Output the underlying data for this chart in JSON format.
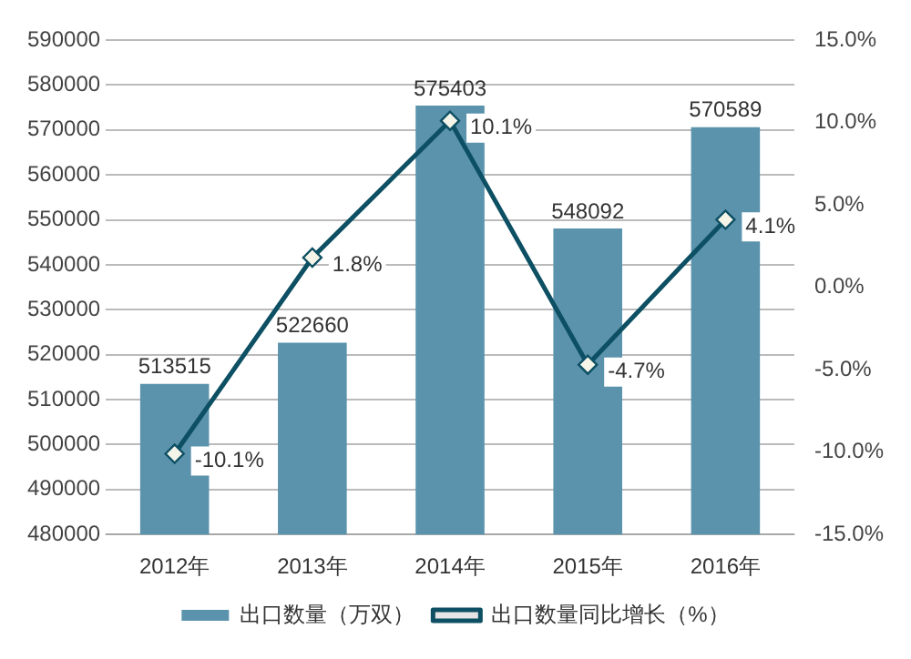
{
  "chart_data": {
    "type": "bar",
    "categories": [
      "2012年",
      "2013年",
      "2014年",
      "2015年",
      "2016年"
    ],
    "series": [
      {
        "name": "出口数量（万双）",
        "color": "#5b93ad",
        "values": [
          513515,
          522660,
          575403,
          548092,
          570589
        ],
        "data_labels": true
      },
      {
        "name": "出口数量同比增长（%）",
        "type": "line",
        "axis": "y2",
        "color": "#0d4f63",
        "values": [
          -10.1,
          1.8,
          10.1,
          -4.7,
          4.1
        ],
        "value_labels": [
          "-10.1%",
          "1.8%",
          "10.1%",
          "-4.7%",
          "4.1%"
        ],
        "marker": "diamond"
      }
    ],
    "ylim": [
      480000,
      590000
    ],
    "yticks": [
      480000,
      490000,
      500000,
      510000,
      520000,
      530000,
      540000,
      550000,
      560000,
      570000,
      580000,
      590000
    ],
    "y2lim": [
      -15,
      15
    ],
    "y2ticks": [
      {
        "value": -15,
        "label": "-15.0%"
      },
      {
        "value": -10,
        "label": "-10.0%"
      },
      {
        "value": -5,
        "label": "-5.0%"
      },
      {
        "value": 0,
        "label": "0.0%"
      },
      {
        "value": 5,
        "label": "5.0%"
      },
      {
        "value": 10,
        "label": "10.0%"
      },
      {
        "value": 15,
        "label": "15.0%"
      }
    ],
    "grid": "y",
    "legend": "bottom"
  }
}
